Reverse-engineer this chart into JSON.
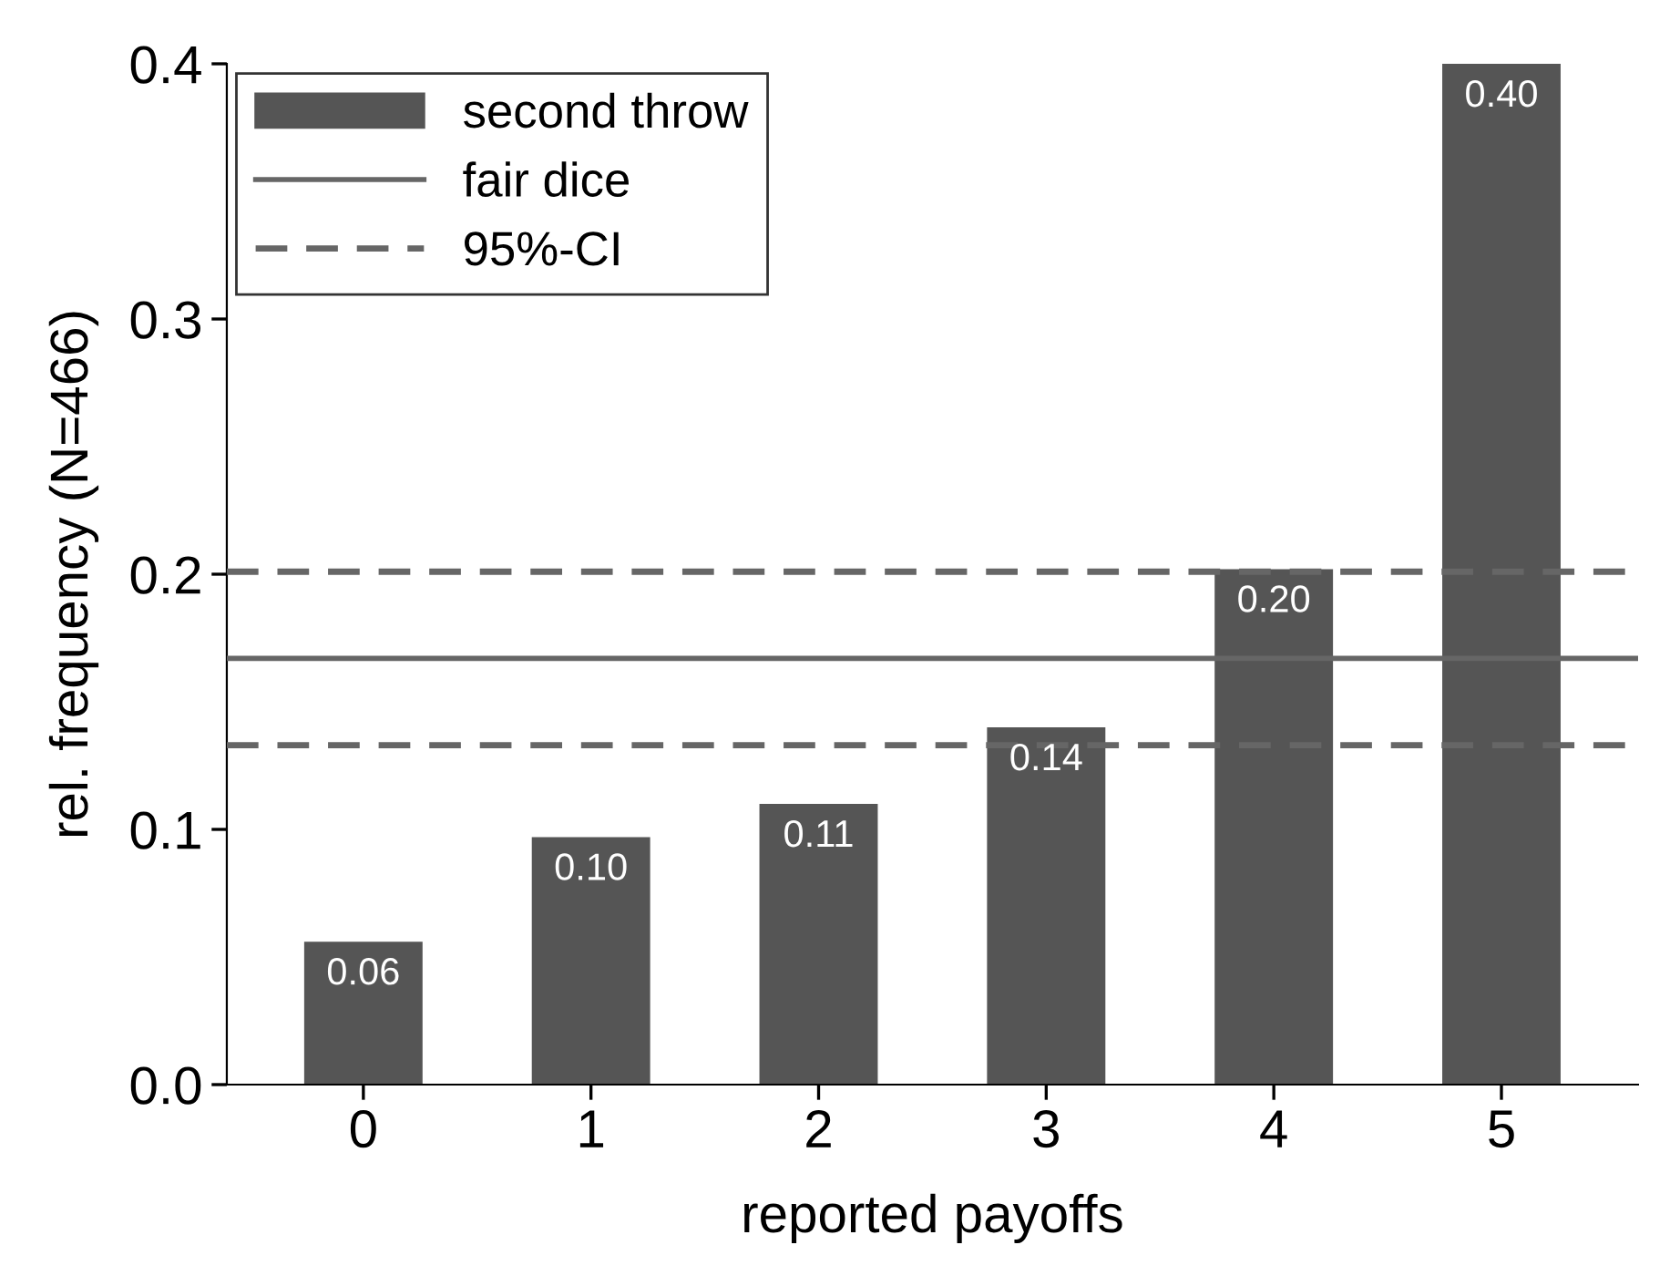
{
  "chart_data": {
    "type": "bar",
    "xlabel": "reported payoffs",
    "ylabel": "rel. frequency (N=466)",
    "categories": [
      "0",
      "1",
      "2",
      "3",
      "4",
      "5"
    ],
    "series": [
      {
        "name": "second throw",
        "color": "#555555",
        "values": [
          0.056,
          0.097,
          0.11,
          0.14,
          0.202,
          0.4
        ],
        "value_labels": [
          "0.06",
          "0.10",
          "0.11",
          "0.14",
          "0.20",
          "0.40"
        ]
      }
    ],
    "ylim": [
      0,
      0.4
    ],
    "yticks": [
      {
        "value": 0,
        "label": "0.0"
      },
      0.1,
      0.2,
      0.3,
      0.4
    ],
    "ref_lines": [
      {
        "axis": "y",
        "value": 0.167,
        "label": "fair dice",
        "color": "#666666",
        "line_style": "solid"
      },
      {
        "axis": "y",
        "value": 0.201,
        "label": "95%-CI",
        "color": "#666666",
        "line_style": "dashed"
      },
      {
        "axis": "y",
        "value": 0.133,
        "color": "#666666",
        "line_style": "dashed"
      }
    ],
    "legend": "top left",
    "grid": false
  }
}
